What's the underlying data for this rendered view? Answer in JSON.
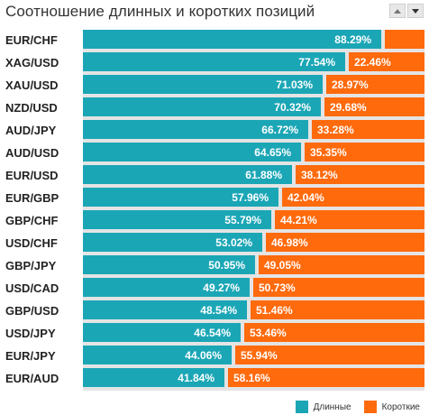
{
  "title": "Соотношение длинных и коротких позиций",
  "legend": {
    "long_label": "Длинные",
    "short_label": "Короткие"
  },
  "colors": {
    "long": "#1ba6b6",
    "short": "#ff6a0d",
    "track": "#e4e4e4"
  },
  "chart_data": {
    "type": "bar",
    "orientation": "horizontal-stacked",
    "title": "Соотношение длинных и коротких позиций",
    "categories": [
      "EUR/CHF",
      "XAG/USD",
      "XAU/USD",
      "NZD/USD",
      "AUD/JPY",
      "AUD/USD",
      "EUR/USD",
      "EUR/GBP",
      "GBP/CHF",
      "USD/CHF",
      "GBP/JPY",
      "USD/CAD",
      "GBP/USD",
      "USD/JPY",
      "EUR/JPY",
      "EUR/AUD"
    ],
    "series": [
      {
        "name": "Длинные",
        "values": [
          88.29,
          77.54,
          71.03,
          70.32,
          66.72,
          64.65,
          61.88,
          57.96,
          55.79,
          53.02,
          50.95,
          49.27,
          48.54,
          46.54,
          44.06,
          41.84
        ]
      },
      {
        "name": "Короткие",
        "values": [
          11.71,
          22.46,
          28.97,
          29.68,
          33.28,
          35.35,
          38.12,
          42.04,
          44.21,
          46.98,
          49.05,
          50.73,
          51.46,
          53.46,
          55.94,
          58.16
        ]
      }
    ],
    "value_labels": {
      "long": [
        "88.29%",
        "77.54%",
        "71.03%",
        "70.32%",
        "66.72%",
        "64.65%",
        "61.88%",
        "57.96%",
        "55.79%",
        "53.02%",
        "50.95%",
        "49.27%",
        "48.54%",
        "46.54%",
        "44.06%",
        "41.84%"
      ],
      "short": [
        "",
        "22.46%",
        "28.97%",
        "29.68%",
        "33.28%",
        "35.35%",
        "38.12%",
        "42.04%",
        "44.21%",
        "46.98%",
        "49.05%",
        "50.73%",
        "51.46%",
        "53.46%",
        "55.94%",
        "58.16%"
      ]
    },
    "xlim": [
      0,
      100
    ],
    "legend_position": "bottom-right",
    "grid": false
  }
}
